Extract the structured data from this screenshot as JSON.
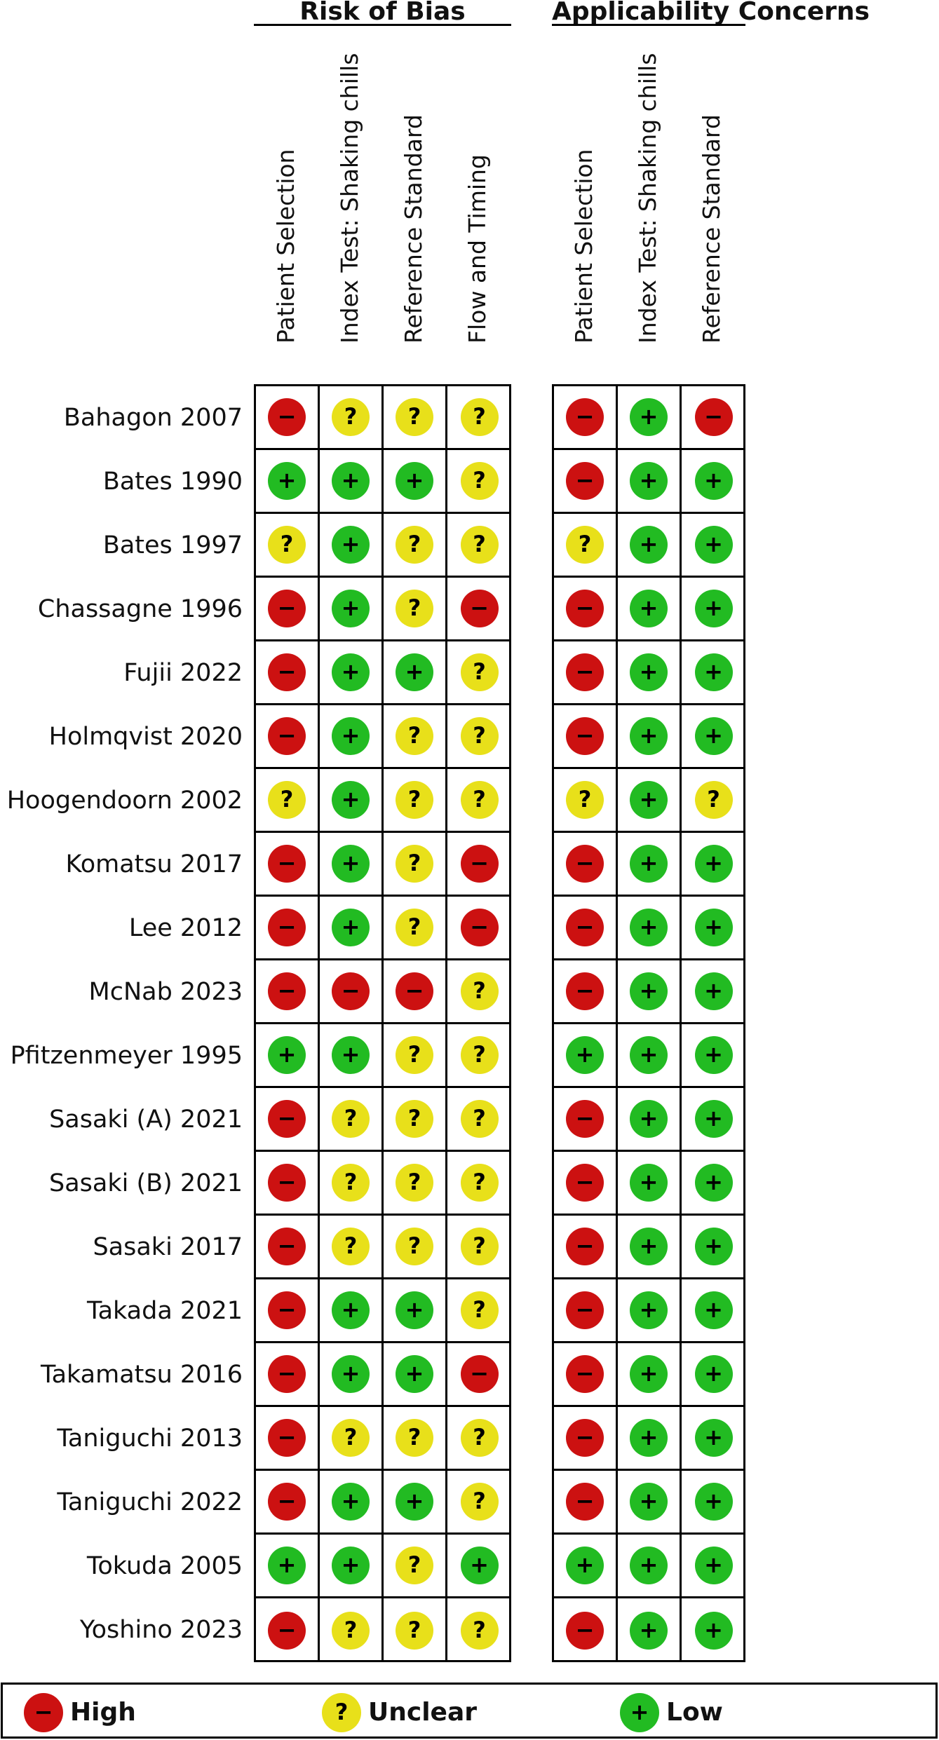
{
  "chart_data": {
    "type": "table",
    "groups": [
      {
        "title": "Risk of Bias",
        "columns": [
          "Patient Selection",
          "Index Test: Shaking chills",
          "Reference Standard",
          "Flow and Timing"
        ]
      },
      {
        "title": "Applicability Concerns",
        "columns": [
          "Patient Selection",
          "Index Test: Shaking chills",
          "Reference Standard"
        ]
      }
    ],
    "studies": [
      {
        "name": "Bahagon 2007",
        "risk": [
          "high",
          "unclear",
          "unclear",
          "unclear"
        ],
        "applicability": [
          "high",
          "low",
          "high"
        ]
      },
      {
        "name": "Bates 1990",
        "risk": [
          "low",
          "low",
          "low",
          "unclear"
        ],
        "applicability": [
          "high",
          "low",
          "low"
        ]
      },
      {
        "name": "Bates 1997",
        "risk": [
          "unclear",
          "low",
          "unclear",
          "unclear"
        ],
        "applicability": [
          "unclear",
          "low",
          "low"
        ]
      },
      {
        "name": "Chassagne 1996",
        "risk": [
          "high",
          "low",
          "unclear",
          "high"
        ],
        "applicability": [
          "high",
          "low",
          "low"
        ]
      },
      {
        "name": "Fujii 2022",
        "risk": [
          "high",
          "low",
          "low",
          "unclear"
        ],
        "applicability": [
          "high",
          "low",
          "low"
        ]
      },
      {
        "name": "Holmqvist 2020",
        "risk": [
          "high",
          "low",
          "unclear",
          "unclear"
        ],
        "applicability": [
          "high",
          "low",
          "low"
        ]
      },
      {
        "name": "Hoogendoorn 2002",
        "risk": [
          "unclear",
          "low",
          "unclear",
          "unclear"
        ],
        "applicability": [
          "unclear",
          "low",
          "unclear"
        ]
      },
      {
        "name": "Komatsu 2017",
        "risk": [
          "high",
          "low",
          "unclear",
          "high"
        ],
        "applicability": [
          "high",
          "low",
          "low"
        ]
      },
      {
        "name": "Lee 2012",
        "risk": [
          "high",
          "low",
          "unclear",
          "high"
        ],
        "applicability": [
          "high",
          "low",
          "low"
        ]
      },
      {
        "name": "McNab 2023",
        "risk": [
          "high",
          "high",
          "high",
          "unclear"
        ],
        "applicability": [
          "high",
          "low",
          "low"
        ]
      },
      {
        "name": "Pfitzenmeyer 1995",
        "risk": [
          "low",
          "low",
          "unclear",
          "unclear"
        ],
        "applicability": [
          "low",
          "low",
          "low"
        ]
      },
      {
        "name": "Sasaki (A) 2021",
        "risk": [
          "high",
          "unclear",
          "unclear",
          "unclear"
        ],
        "applicability": [
          "high",
          "low",
          "low"
        ]
      },
      {
        "name": "Sasaki (B) 2021",
        "risk": [
          "high",
          "unclear",
          "unclear",
          "unclear"
        ],
        "applicability": [
          "high",
          "low",
          "low"
        ]
      },
      {
        "name": "Sasaki 2017",
        "risk": [
          "high",
          "unclear",
          "unclear",
          "unclear"
        ],
        "applicability": [
          "high",
          "low",
          "low"
        ]
      },
      {
        "name": "Takada 2021",
        "risk": [
          "high",
          "low",
          "low",
          "unclear"
        ],
        "applicability": [
          "high",
          "low",
          "low"
        ]
      },
      {
        "name": "Takamatsu 2016",
        "risk": [
          "high",
          "low",
          "low",
          "high"
        ],
        "applicability": [
          "high",
          "low",
          "low"
        ]
      },
      {
        "name": "Taniguchi 2013",
        "risk": [
          "high",
          "unclear",
          "unclear",
          "unclear"
        ],
        "applicability": [
          "high",
          "low",
          "low"
        ]
      },
      {
        "name": "Taniguchi 2022",
        "risk": [
          "high",
          "low",
          "low",
          "unclear"
        ],
        "applicability": [
          "high",
          "low",
          "low"
        ]
      },
      {
        "name": "Tokuda 2005",
        "risk": [
          "low",
          "low",
          "unclear",
          "low"
        ],
        "applicability": [
          "low",
          "low",
          "low"
        ]
      },
      {
        "name": "Yoshino 2023",
        "risk": [
          "high",
          "unclear",
          "unclear",
          "unclear"
        ],
        "applicability": [
          "high",
          "low",
          "low"
        ]
      }
    ],
    "legend": [
      {
        "key": "high",
        "label": "High",
        "symbol": "−",
        "color": "#cc1111"
      },
      {
        "key": "unclear",
        "label": "Unclear",
        "symbol": "?",
        "color": "#e8e01a"
      },
      {
        "key": "low",
        "label": "Low",
        "symbol": "+",
        "color": "#22bb22"
      }
    ]
  }
}
